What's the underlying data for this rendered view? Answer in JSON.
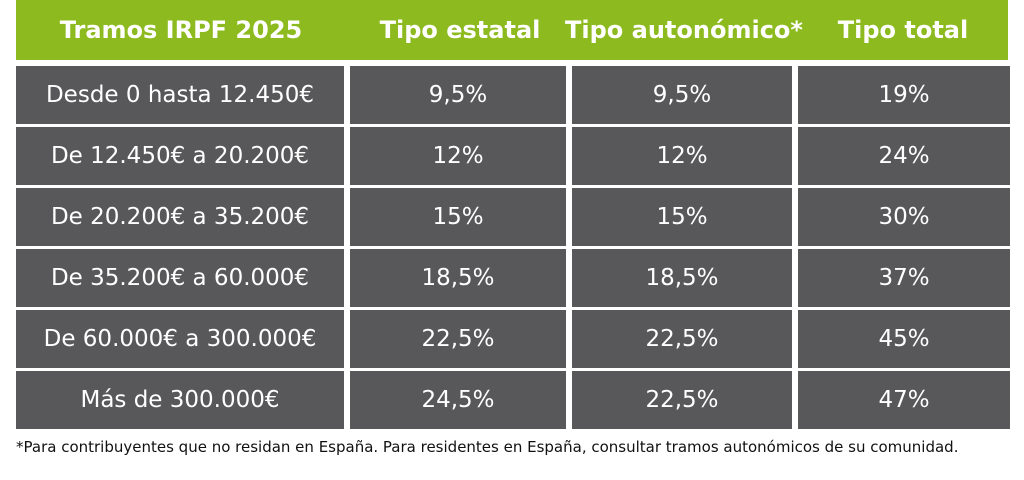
{
  "table": {
    "headers": [
      "Tramos IRPF 2025",
      "Tipo estatal",
      "Tipo autonómico*",
      "Tipo total"
    ],
    "rows": [
      [
        "Desde 0 hasta 12.450€",
        "9,5%",
        "9,5%",
        "19%"
      ],
      [
        "De 12.450€ a 20.200€",
        "12%",
        "12%",
        "24%"
      ],
      [
        "De 20.200€ a 35.200€",
        "15%",
        "15%",
        "30%"
      ],
      [
        "De 35.200€ a 60.000€",
        "18,5%",
        "18,5%",
        "37%"
      ],
      [
        "De 60.000€ a 300.000€",
        "22,5%",
        "22,5%",
        "45%"
      ],
      [
        "Más de 300.000€",
        "24,5%",
        "22,5%",
        "47%"
      ]
    ]
  },
  "footnote": "*Para contribuyentes que no residan en España. Para residentes en España, consultar tramos autonómicos de su comunidad.",
  "colors": {
    "header_bg": "#8cba1f",
    "cell_bg": "#58585a",
    "text": "#ffffff"
  }
}
